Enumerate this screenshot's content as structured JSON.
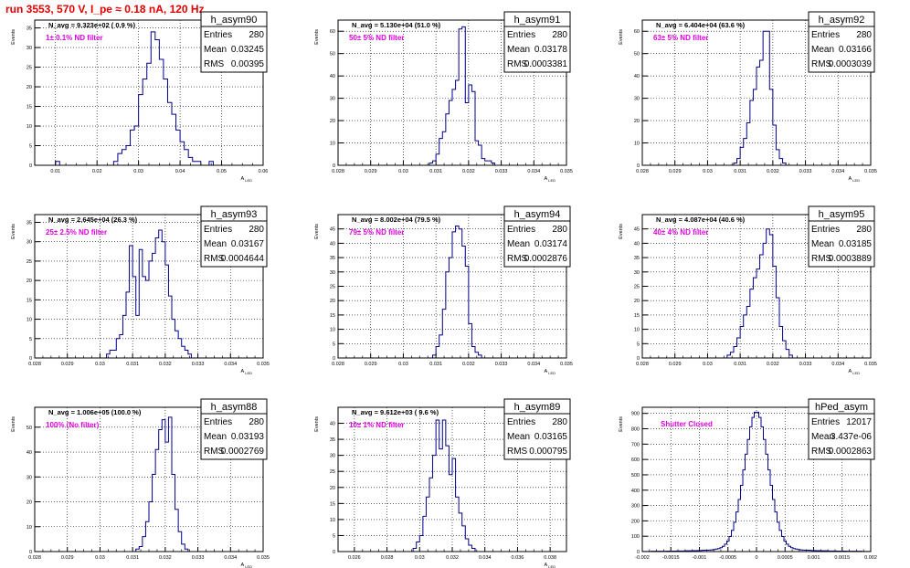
{
  "title": "run 3553,   570 V, I_pe ≈ 0.18 nA, 120 Hz",
  "chart_data": [
    {
      "type": "histogram",
      "name": "h_asym90",
      "stats": {
        "Entries": "280",
        "Mean": "0.03245",
        "RMS": "0.00395"
      },
      "navg": "N_avg = 9.323e+02 ( 0.9 %)",
      "filter": "1± 0.1% ND filter",
      "xlabel": "A_LED",
      "ylabel": "Events",
      "xlim": [
        0.005,
        0.06
      ],
      "ylim": [
        0,
        37
      ],
      "xticks": [
        0.01,
        0.02,
        0.03,
        0.04,
        0.05,
        0.06
      ],
      "xticklabels": [
        "0.01",
        "0.02",
        "0.03",
        "0.04",
        "0.05",
        "0.06"
      ],
      "yticks": [
        0,
        5,
        10,
        15,
        20,
        25,
        30,
        35
      ],
      "bins": [
        [
          0.01,
          1
        ],
        [
          0.011,
          0
        ],
        [
          0.012,
          0
        ],
        [
          0.013,
          0
        ],
        [
          0.014,
          0
        ],
        [
          0.015,
          0
        ],
        [
          0.016,
          0
        ],
        [
          0.017,
          0
        ],
        [
          0.018,
          0
        ],
        [
          0.019,
          0
        ],
        [
          0.02,
          0
        ],
        [
          0.021,
          0
        ],
        [
          0.022,
          0
        ],
        [
          0.023,
          0
        ],
        [
          0.024,
          1
        ],
        [
          0.025,
          3
        ],
        [
          0.026,
          4
        ],
        [
          0.027,
          5
        ],
        [
          0.028,
          9
        ],
        [
          0.029,
          10
        ],
        [
          0.03,
          18
        ],
        [
          0.031,
          22
        ],
        [
          0.032,
          26
        ],
        [
          0.033,
          34
        ],
        [
          0.034,
          32
        ],
        [
          0.035,
          27
        ],
        [
          0.036,
          22
        ],
        [
          0.037,
          16
        ],
        [
          0.038,
          13
        ],
        [
          0.039,
          9
        ],
        [
          0.04,
          6
        ],
        [
          0.041,
          4
        ],
        [
          0.042,
          2
        ],
        [
          0.043,
          1
        ],
        [
          0.044,
          1
        ],
        [
          0.045,
          0
        ],
        [
          0.046,
          0
        ],
        [
          0.047,
          1
        ],
        [
          0.048,
          0
        ],
        [
          0.049,
          0
        ],
        [
          0.05,
          0
        ],
        [
          0.051,
          0
        ],
        [
          0.052,
          0
        ],
        [
          0.053,
          0
        ],
        [
          0.054,
          0
        ],
        [
          0.055,
          0
        ],
        [
          0.056,
          0
        ],
        [
          0.057,
          0
        ],
        [
          0.058,
          0
        ],
        [
          0.059,
          0
        ]
      ],
      "binwidth": 0.001
    },
    {
      "type": "histogram",
      "name": "h_asym91",
      "stats": {
        "Entries": "280",
        "Mean": "0.03178",
        "RMS": "0.0003381"
      },
      "navg": "N_avg = 5.130e+04 (51.0 %)",
      "filter": "50± 5% ND filter",
      "xlabel": "A_LED",
      "ylabel": "Events",
      "xlim": [
        0.028,
        0.035
      ],
      "ylim": [
        0,
        65
      ],
      "xticks": [
        0.028,
        0.029,
        0.03,
        0.031,
        0.032,
        0.033,
        0.034,
        0.035
      ],
      "xticklabels": [
        "0.028",
        "0.029",
        "0.03",
        "0.031",
        "0.032",
        "0.033",
        "0.034",
        "0.035"
      ],
      "yticks": [
        0,
        10,
        20,
        30,
        40,
        50,
        60
      ],
      "bins": [
        [
          0.0308,
          1
        ],
        [
          0.0309,
          2
        ],
        [
          0.031,
          5
        ],
        [
          0.0311,
          12
        ],
        [
          0.0312,
          15
        ],
        [
          0.0313,
          23
        ],
        [
          0.0314,
          29
        ],
        [
          0.0315,
          34
        ],
        [
          0.0316,
          38
        ],
        [
          0.0317,
          61
        ],
        [
          0.0318,
          62
        ],
        [
          0.0319,
          28
        ],
        [
          0.032,
          36
        ],
        [
          0.0321,
          33
        ],
        [
          0.0322,
          11
        ],
        [
          0.0323,
          9
        ],
        [
          0.0324,
          3
        ],
        [
          0.0325,
          2
        ],
        [
          0.0326,
          2
        ],
        [
          0.0327,
          1
        ]
      ],
      "binwidth": 0.0001
    },
    {
      "type": "histogram",
      "name": "h_asym92",
      "stats": {
        "Entries": "280",
        "Mean": "0.03166",
        "RMS": "0.0003039"
      },
      "navg": "N_avg = 6.404e+04 (63.6 %)",
      "filter": "63± 5% ND filter",
      "xlabel": "A_LED",
      "ylabel": "Events",
      "xlim": [
        0.028,
        0.035
      ],
      "ylim": [
        0,
        65
      ],
      "xticks": [
        0.028,
        0.029,
        0.03,
        0.031,
        0.032,
        0.033,
        0.034,
        0.035
      ],
      "xticklabels": [
        "0.028",
        "0.029",
        "0.03",
        "0.031",
        "0.032",
        "0.033",
        "0.034",
        "0.035"
      ],
      "yticks": [
        0,
        10,
        20,
        30,
        40,
        50,
        60
      ],
      "bins": [
        [
          0.0308,
          1
        ],
        [
          0.0309,
          3
        ],
        [
          0.031,
          8
        ],
        [
          0.0311,
          12
        ],
        [
          0.0312,
          19
        ],
        [
          0.0313,
          29
        ],
        [
          0.0314,
          34
        ],
        [
          0.0315,
          44
        ],
        [
          0.0316,
          47
        ],
        [
          0.0317,
          60
        ],
        [
          0.0318,
          60
        ],
        [
          0.0319,
          34
        ],
        [
          0.032,
          18
        ],
        [
          0.0321,
          7
        ],
        [
          0.0322,
          3
        ],
        [
          0.0323,
          1
        ]
      ],
      "binwidth": 0.0001
    },
    {
      "type": "histogram",
      "name": "h_asym93",
      "stats": {
        "Entries": "280",
        "Mean": "0.03167",
        "RMS": "0.0004644"
      },
      "navg": "N_avg = 2.645e+04 (26.3 %)",
      "filter": "25± 2.5% ND filter",
      "xlabel": "A_LED",
      "ylabel": "Events",
      "xlim": [
        0.028,
        0.035
      ],
      "ylim": [
        0,
        37
      ],
      "xticks": [
        0.028,
        0.029,
        0.03,
        0.031,
        0.032,
        0.033,
        0.034,
        0.035
      ],
      "xticklabels": [
        "0.028",
        "0.029",
        "0.03",
        "0.031",
        "0.032",
        "0.033",
        "0.034",
        "0.035"
      ],
      "yticks": [
        0,
        5,
        10,
        15,
        20,
        25,
        30,
        35
      ],
      "bins": [
        [
          0.0302,
          1
        ],
        [
          0.0303,
          2
        ],
        [
          0.0304,
          2
        ],
        [
          0.0305,
          5
        ],
        [
          0.0306,
          6
        ],
        [
          0.0307,
          11
        ],
        [
          0.0308,
          17
        ],
        [
          0.0309,
          29
        ],
        [
          0.031,
          21
        ],
        [
          0.0311,
          11
        ],
        [
          0.0312,
          28
        ],
        [
          0.0313,
          21
        ],
        [
          0.0314,
          20
        ],
        [
          0.0315,
          25
        ],
        [
          0.0316,
          27
        ],
        [
          0.0317,
          31
        ],
        [
          0.0318,
          33
        ],
        [
          0.0319,
          30
        ],
        [
          0.032,
          24
        ],
        [
          0.0321,
          16
        ],
        [
          0.0322,
          10
        ],
        [
          0.0323,
          7
        ],
        [
          0.0324,
          5
        ],
        [
          0.0325,
          3
        ],
        [
          0.0326,
          2
        ],
        [
          0.0327,
          1
        ]
      ],
      "binwidth": 0.0001
    },
    {
      "type": "histogram",
      "name": "h_asym94",
      "stats": {
        "Entries": "280",
        "Mean": "0.03174",
        "RMS": "0.0002876"
      },
      "navg": "N_avg = 8.002e+04 (79.5 %)",
      "filter": "79± 5% ND filter",
      "xlabel": "A_LED",
      "ylabel": "Events",
      "xlim": [
        0.028,
        0.035
      ],
      "ylim": [
        0,
        50
      ],
      "xticks": [
        0.028,
        0.029,
        0.03,
        0.031,
        0.032,
        0.033,
        0.034,
        0.035
      ],
      "xticklabels": [
        "0.028",
        "0.029",
        "0.03",
        "0.031",
        "0.032",
        "0.033",
        "0.034",
        "0.035"
      ],
      "yticks": [
        0,
        5,
        10,
        15,
        20,
        25,
        30,
        35,
        40,
        45
      ],
      "bins": [
        [
          0.0309,
          1
        ],
        [
          0.031,
          4
        ],
        [
          0.0311,
          8
        ],
        [
          0.0312,
          17
        ],
        [
          0.0313,
          30
        ],
        [
          0.0314,
          35
        ],
        [
          0.0315,
          44
        ],
        [
          0.0316,
          46
        ],
        [
          0.0317,
          45
        ],
        [
          0.0318,
          39
        ],
        [
          0.0319,
          32
        ],
        [
          0.032,
          12
        ],
        [
          0.0321,
          4
        ],
        [
          0.0322,
          2
        ],
        [
          0.0323,
          1
        ]
      ],
      "binwidth": 0.0001
    },
    {
      "type": "histogram",
      "name": "h_asym95",
      "stats": {
        "Entries": "280",
        "Mean": "0.03185",
        "RMS": "0.0003889"
      },
      "navg": "N_avg = 4.087e+04 (40.6 %)",
      "filter": "40± 4% ND filter",
      "xlabel": "A_LED",
      "ylabel": "Events",
      "xlim": [
        0.028,
        0.035
      ],
      "ylim": [
        0,
        50
      ],
      "xticks": [
        0.028,
        0.029,
        0.03,
        0.031,
        0.032,
        0.033,
        0.034,
        0.035
      ],
      "xticklabels": [
        "0.028",
        "0.029",
        "0.03",
        "0.031",
        "0.032",
        "0.033",
        "0.034",
        "0.035"
      ],
      "yticks": [
        0,
        5,
        10,
        15,
        20,
        25,
        30,
        35,
        40,
        45
      ],
      "bins": [
        [
          0.0306,
          1
        ],
        [
          0.0307,
          2
        ],
        [
          0.0308,
          4
        ],
        [
          0.0309,
          7
        ],
        [
          0.031,
          11
        ],
        [
          0.0311,
          15
        ],
        [
          0.0312,
          18
        ],
        [
          0.0313,
          24
        ],
        [
          0.0314,
          28
        ],
        [
          0.0315,
          31
        ],
        [
          0.0316,
          36
        ],
        [
          0.0317,
          40
        ],
        [
          0.0318,
          45
        ],
        [
          0.0319,
          43
        ],
        [
          0.032,
          32
        ],
        [
          0.0321,
          21
        ],
        [
          0.0322,
          11
        ],
        [
          0.0323,
          6
        ],
        [
          0.0324,
          3
        ],
        [
          0.0325,
          1
        ]
      ],
      "binwidth": 0.0001
    },
    {
      "type": "histogram",
      "name": "h_asym88",
      "stats": {
        "Entries": "280",
        "Mean": "0.03193",
        "RMS": "0.0002769"
      },
      "navg": "N_avg = 1.006e+05 (100.0 %)",
      "filter": "100% (No filter)",
      "xlabel": "A_LED",
      "ylabel": "Events",
      "xlim": [
        0.028,
        0.035
      ],
      "ylim": [
        0,
        58
      ],
      "xticks": [
        0.028,
        0.029,
        0.03,
        0.031,
        0.032,
        0.033,
        0.034,
        0.035
      ],
      "xticklabels": [
        "0.028",
        "0.029",
        "0.03",
        "0.031",
        "0.032",
        "0.033",
        "0.034",
        "0.035"
      ],
      "yticks": [
        0,
        10,
        20,
        30,
        40,
        50
      ],
      "bins": [
        [
          0.0311,
          1
        ],
        [
          0.0312,
          2
        ],
        [
          0.0313,
          6
        ],
        [
          0.0314,
          12
        ],
        [
          0.0315,
          20
        ],
        [
          0.0316,
          31
        ],
        [
          0.0317,
          41
        ],
        [
          0.0318,
          49
        ],
        [
          0.0319,
          53
        ],
        [
          0.032,
          44
        ],
        [
          0.0321,
          54
        ],
        [
          0.0322,
          31
        ],
        [
          0.0323,
          17
        ],
        [
          0.0324,
          8
        ],
        [
          0.0325,
          3
        ],
        [
          0.0326,
          1
        ]
      ],
      "binwidth": 0.0001
    },
    {
      "type": "histogram",
      "name": "h_asym89",
      "stats": {
        "Entries": "280",
        "Mean": "0.03165",
        "RMS": "0.000795"
      },
      "navg": "N_avg = 9.612e+03 ( 9.6 %)",
      "filter": "10± 1% ND filter",
      "xlabel": "A_LED",
      "ylabel": "Events",
      "xlim": [
        0.025,
        0.039
      ],
      "ylim": [
        0,
        45
      ],
      "xticks": [
        0.026,
        0.028,
        0.03,
        0.032,
        0.034,
        0.036,
        0.038
      ],
      "xticklabels": [
        "0.026",
        "0.028",
        "0.03",
        "0.032",
        "0.034",
        "0.036",
        "0.038"
      ],
      "yticks": [
        0,
        5,
        10,
        15,
        20,
        25,
        30,
        35,
        40
      ],
      "bins": [
        [
          0.0296,
          1
        ],
        [
          0.0298,
          3
        ],
        [
          0.03,
          5
        ],
        [
          0.0302,
          11
        ],
        [
          0.0304,
          17
        ],
        [
          0.0306,
          23
        ],
        [
          0.0308,
          30
        ],
        [
          0.031,
          41
        ],
        [
          0.0312,
          32
        ],
        [
          0.0314,
          41
        ],
        [
          0.0316,
          33
        ],
        [
          0.0318,
          24
        ],
        [
          0.032,
          29
        ],
        [
          0.0322,
          17
        ],
        [
          0.0324,
          12
        ],
        [
          0.0326,
          8
        ],
        [
          0.0328,
          4
        ],
        [
          0.033,
          2
        ],
        [
          0.0332,
          1
        ]
      ],
      "binwidth": 0.0002
    },
    {
      "type": "histogram",
      "name": "hPed_asym",
      "stats": {
        "Entries": "12017",
        "Mean": "3.437e-06",
        "RMS": "0.0002863"
      },
      "navg": "",
      "filter": "Shutter Closed",
      "xlabel": "",
      "ylabel": "Events",
      "xlim": [
        -0.002,
        0.002
      ],
      "ylim": [
        0,
        940
      ],
      "xticks": [
        -0.002,
        -0.0015,
        -0.001,
        -0.0005,
        0,
        0.0005,
        0.001,
        0.0015,
        0.002
      ],
      "xticklabels": [
        "-0.002",
        "-0.0015",
        "-0.001",
        "-0.0005",
        "0",
        "0.0005",
        "0.001",
        "0.0015",
        "0.002"
      ],
      "yticks": [
        0,
        100,
        200,
        300,
        400,
        500,
        600,
        700,
        800,
        900
      ],
      "peak": {
        "mu": 0.0,
        "height": 870,
        "sigma_core": 0.00021,
        "tail_frac": 0.05,
        "sigma_tail": 0.00055
      },
      "binwidth": 4e-05
    }
  ]
}
